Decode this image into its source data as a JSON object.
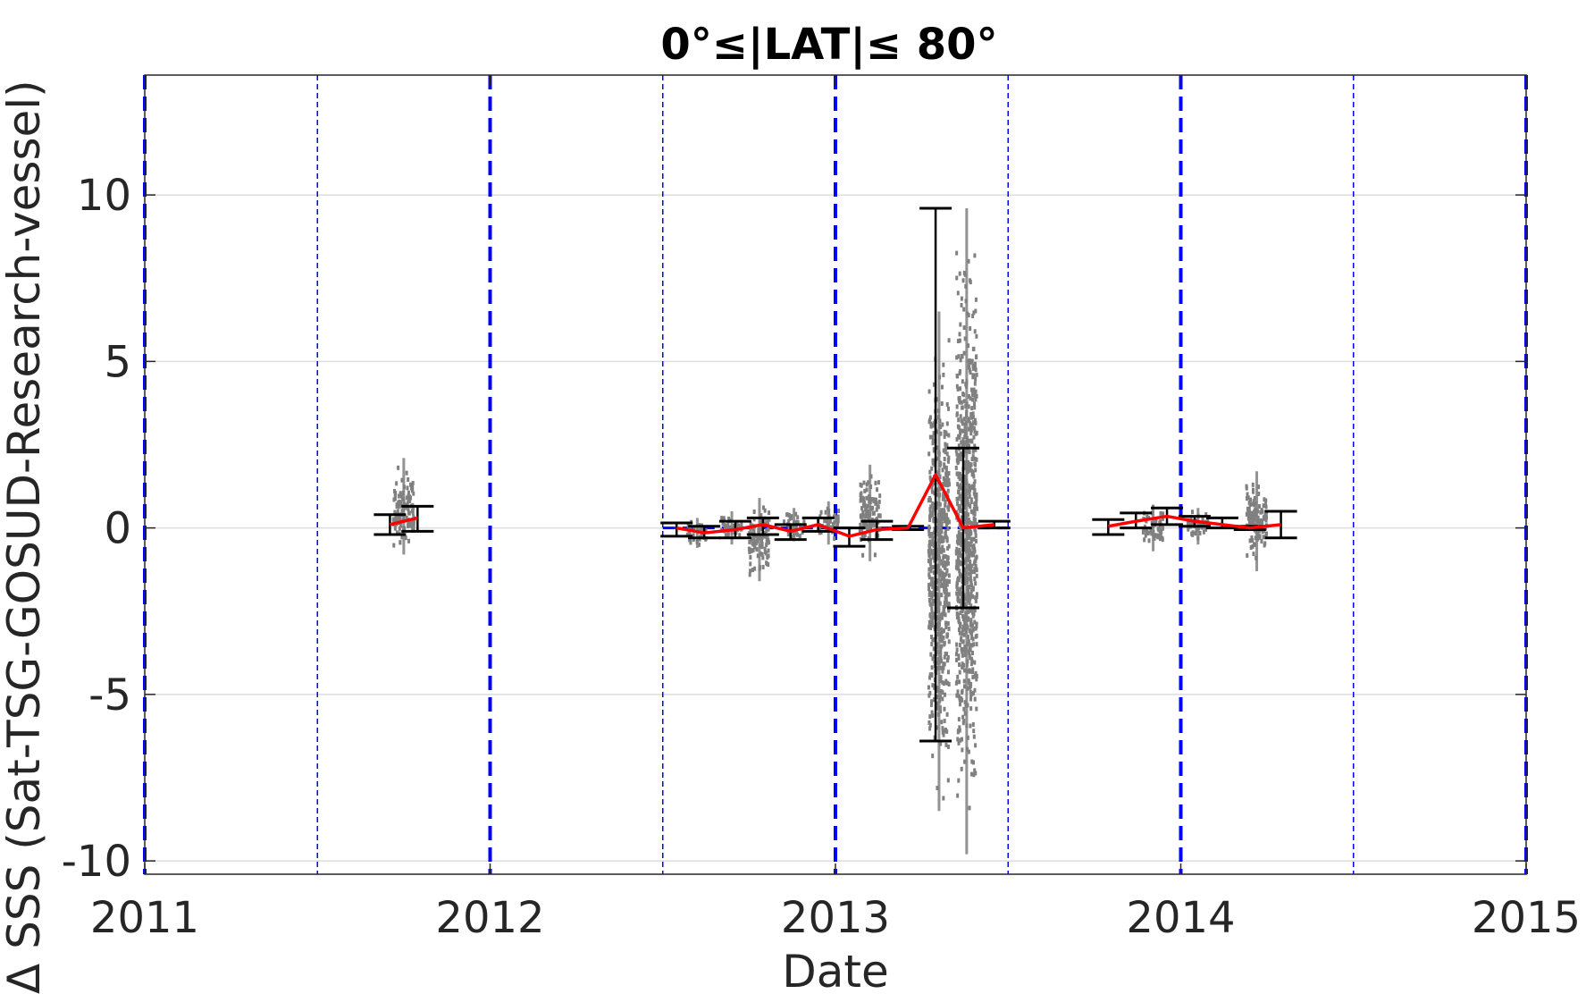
{
  "chart_data": {
    "type": "scatter",
    "title": "0°≤|LAT|≤ 80°",
    "xlabel": "Date",
    "ylabel": "Δ SSS (Sat-TSG-GOSUD-Research-vessel)",
    "xlim": [
      2011.0,
      2015.0
    ],
    "ylim": [
      -10.4,
      13.6
    ],
    "x_ticks": [
      2011,
      2012,
      2013,
      2014,
      2015
    ],
    "x_tick_labels": [
      "2011",
      "2012",
      "2013",
      "2014",
      "2015"
    ],
    "y_ticks": [
      -10,
      -5,
      0,
      5,
      10
    ],
    "y_tick_labels": [
      "-10",
      "-5",
      "0",
      "5",
      "10"
    ],
    "grid": "horizontal",
    "colors": {
      "points": "#808080",
      "mean_line": "#ff0000",
      "error_bars": "#000000",
      "year_lines": "#0000ff",
      "half_year_lines": "#0000ff",
      "grid": "#dddddd"
    },
    "year_lines": [
      2011,
      2012,
      2013,
      2014,
      2015
    ],
    "half_year_lines": [
      2011.5,
      2012.5,
      2013.5,
      2014.5
    ],
    "monthly_mean": [
      {
        "x": 2011.71,
        "y": 0.1,
        "low": -0.2,
        "high": 0.4
      },
      {
        "x": 2011.79,
        "y": 0.3,
        "low": -0.1,
        "high": 0.65
      },
      {
        "x": 2012.54,
        "y": 0.0,
        "low": -0.25,
        "high": 0.15
      },
      {
        "x": 2012.62,
        "y": -0.15,
        "low": -0.3,
        "high": 0.05
      },
      {
        "x": 2012.71,
        "y": -0.05,
        "low": -0.3,
        "high": 0.2
      },
      {
        "x": 2012.79,
        "y": 0.1,
        "low": -0.2,
        "high": 0.3
      },
      {
        "x": 2012.87,
        "y": -0.1,
        "low": -0.35,
        "high": 0.1
      },
      {
        "x": 2012.95,
        "y": 0.1,
        "low": -0.1,
        "high": 0.3
      },
      {
        "x": 2013.04,
        "y": -0.25,
        "low": -0.55,
        "high": 0.0
      },
      {
        "x": 2013.12,
        "y": -0.05,
        "low": -0.35,
        "high": 0.2
      },
      {
        "x": 2013.21,
        "y": 0.0,
        "low": -0.05,
        "high": 0.05
      },
      {
        "x": 2013.29,
        "y": 1.6,
        "low": -6.4,
        "high": 9.6
      },
      {
        "x": 2013.37,
        "y": 0.0,
        "low": -2.4,
        "high": 2.4
      },
      {
        "x": 2013.46,
        "y": 0.1,
        "low": 0.0,
        "high": 0.2
      },
      {
        "x": 2013.79,
        "y": 0.05,
        "low": -0.2,
        "high": 0.25
      },
      {
        "x": 2013.87,
        "y": 0.2,
        "low": 0.0,
        "high": 0.45
      },
      {
        "x": 2013.96,
        "y": 0.35,
        "low": 0.1,
        "high": 0.6
      },
      {
        "x": 2014.04,
        "y": 0.2,
        "low": 0.05,
        "high": 0.35
      },
      {
        "x": 2014.12,
        "y": 0.1,
        "low": 0.0,
        "high": 0.3
      },
      {
        "x": 2014.2,
        "y": 0.0,
        "low": -0.05,
        "high": 0.05
      },
      {
        "x": 2014.29,
        "y": 0.1,
        "low": -0.3,
        "high": 0.5
      }
    ],
    "point_clusters": [
      {
        "x": 2011.75,
        "y_min": -0.8,
        "y_max": 2.1
      },
      {
        "x": 2012.6,
        "y_min": -0.6,
        "y_max": 0.3
      },
      {
        "x": 2012.7,
        "y_min": -0.5,
        "y_max": 0.5
      },
      {
        "x": 2012.78,
        "y_min": -1.6,
        "y_max": 0.9
      },
      {
        "x": 2012.88,
        "y_min": -0.4,
        "y_max": 0.6
      },
      {
        "x": 2012.98,
        "y_min": -0.5,
        "y_max": 0.8
      },
      {
        "x": 2013.1,
        "y_min": -1.0,
        "y_max": 1.9
      },
      {
        "x": 2013.3,
        "y_min": -8.5,
        "y_max": 6.5
      },
      {
        "x": 2013.38,
        "y_min": -9.8,
        "y_max": 9.6
      },
      {
        "x": 2013.92,
        "y_min": -0.7,
        "y_max": 0.7
      },
      {
        "x": 2014.05,
        "y_min": -0.5,
        "y_max": 0.6
      },
      {
        "x": 2014.22,
        "y_min": -1.3,
        "y_max": 1.7
      }
    ]
  }
}
